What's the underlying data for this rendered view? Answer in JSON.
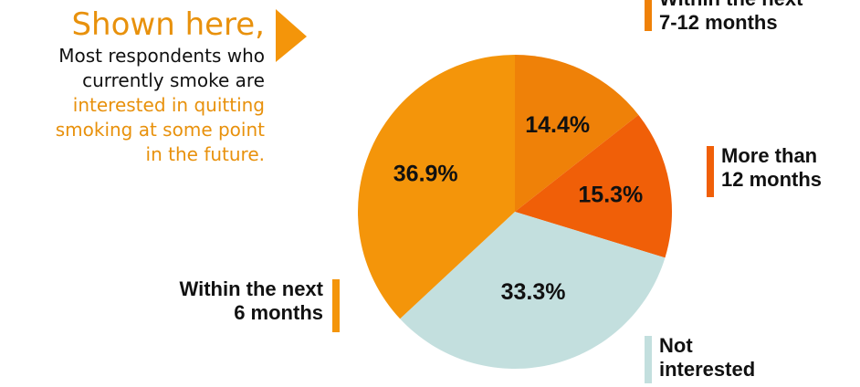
{
  "intro": {
    "title": "Shown here,",
    "line1": "Most respondents who",
    "line2": "currently smoke are",
    "line3": "interested in quitting",
    "line4": "smoking at some point",
    "line5": "in the future."
  },
  "colors": {
    "accent": "#e8910c",
    "within_7_12": "#ef8108",
    "more_than_12": "#f05f08",
    "not_interested": "#c3dfde",
    "within_6": "#f4950a"
  },
  "chart_data": {
    "type": "pie",
    "title": "",
    "slices": [
      {
        "label_line1": "Within the next",
        "label_line2": "7-12 months",
        "value": 14.4,
        "value_label": "14.4%",
        "color": "#ef8108"
      },
      {
        "label_line1": "More than",
        "label_line2": "12 months",
        "value": 15.3,
        "value_label": "15.3%",
        "color": "#f05f08"
      },
      {
        "label_line1": "Not",
        "label_line2": "interested",
        "value": 33.3,
        "value_label": "33.3%",
        "color": "#c3dfde"
      },
      {
        "label_line1": "Within the next",
        "label_line2": "6 months",
        "value": 36.9,
        "value_label": "36.9%",
        "color": "#f4950a"
      }
    ]
  }
}
